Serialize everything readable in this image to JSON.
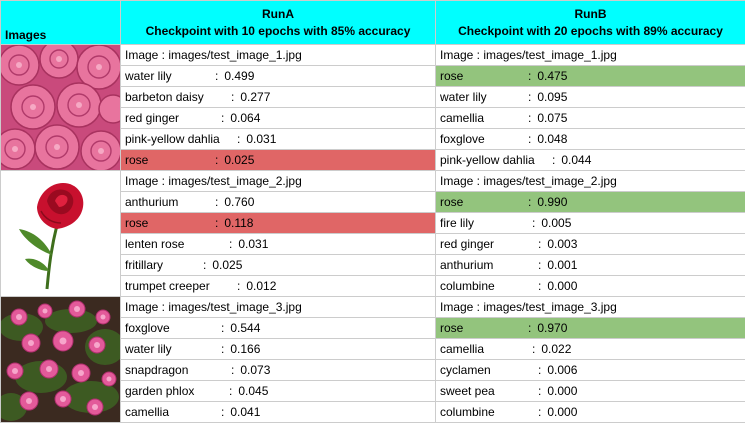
{
  "header": {
    "images_label": "Images",
    "run_a": {
      "name": "RunA",
      "subtitle": "Checkpoint with 10 epochs with 85% accuracy"
    },
    "run_b": {
      "name": "RunB",
      "subtitle": "Checkpoint with 20 epochs with 89% accuracy"
    }
  },
  "rows": [
    {
      "image_icon": "pink-roses-bunch-thumbnail",
      "run_a": {
        "image_path": "Image : images/test_image_1.jpg",
        "preds": [
          {
            "label": "water lily",
            "score": "0.499"
          },
          {
            "label": "barbeton daisy",
            "score": "0.277"
          },
          {
            "label": "red ginger",
            "score": "0.064"
          },
          {
            "label": "pink-yellow dahlia",
            "score": "0.031"
          },
          {
            "label": "rose",
            "score": "0.025"
          }
        ]
      },
      "run_b": {
        "image_path": "Image : images/test_image_1.jpg",
        "preds": [
          {
            "label": "rose",
            "score": "0.475"
          },
          {
            "label": "water lily",
            "score": "0.095"
          },
          {
            "label": "camellia",
            "score": "0.075"
          },
          {
            "label": "foxglove",
            "score": "0.048"
          },
          {
            "label": "pink-yellow dahlia",
            "score": "0.044"
          }
        ]
      }
    },
    {
      "image_icon": "single-red-rose-thumbnail",
      "run_a": {
        "image_path": "Image : images/test_image_2.jpg",
        "preds": [
          {
            "label": "anthurium",
            "score": "0.760"
          },
          {
            "label": "rose",
            "score": "0.118"
          },
          {
            "label": "lenten rose",
            "score": "0.031"
          },
          {
            "label": "fritillary",
            "score": "0.025"
          },
          {
            "label": "trumpet creeper",
            "score": "0.012"
          }
        ]
      },
      "run_b": {
        "image_path": "Image : images/test_image_2.jpg",
        "preds": [
          {
            "label": "rose",
            "score": "0.990"
          },
          {
            "label": "fire lily",
            "score": "0.005"
          },
          {
            "label": "red ginger",
            "score": "0.003"
          },
          {
            "label": "anthurium",
            "score": "0.001"
          },
          {
            "label": "columbine",
            "score": "0.000"
          }
        ]
      }
    },
    {
      "image_icon": "pink-rose-bush-thumbnail",
      "run_a": {
        "image_path": "Image : images/test_image_3.jpg",
        "preds": [
          {
            "label": "foxglove",
            "score": "0.544"
          },
          {
            "label": "water lily",
            "score": "0.166"
          },
          {
            "label": "snapdragon",
            "score": "0.073"
          },
          {
            "label": "garden phlox",
            "score": "0.045"
          },
          {
            "label": "camellia",
            "score": "0.041"
          }
        ]
      },
      "run_b": {
        "image_path": "Image : images/test_image_3.jpg",
        "preds": [
          {
            "label": "rose",
            "score": "0.970"
          },
          {
            "label": "camellia",
            "score": "0.022"
          },
          {
            "label": "cyclamen",
            "score": "0.006"
          },
          {
            "label": "sweet pea",
            "score": "0.000"
          },
          {
            "label": "columbine",
            "score": "0.000"
          }
        ]
      }
    }
  ],
  "colors": {
    "header_bg": "#00ffff",
    "correct_highlight": "#93c47d",
    "wrong_highlight": "#e06666",
    "grid": "#cccccc"
  }
}
